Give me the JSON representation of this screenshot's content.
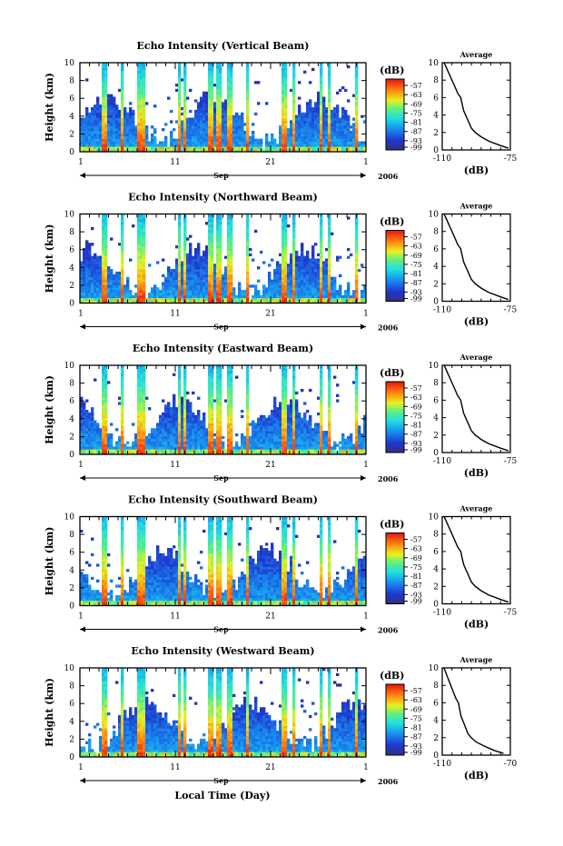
{
  "figure": {
    "xlabel": "Local Time (Day)"
  },
  "chart_data": [
    {
      "type": "heatmap",
      "title": "Echo Intensity (Vertical Beam)",
      "ylabel": "Height (km)",
      "ylim": [
        0,
        10
      ],
      "yticks": [
        "0",
        "2",
        "4",
        "6",
        "8",
        "10"
      ],
      "xticks": [
        "1",
        "11",
        "21",
        "1"
      ],
      "month": "Sep",
      "year": "2006",
      "colorbar": {
        "label": "(dB)",
        "ticks": [
          "-57",
          "-63",
          "-69",
          "-75",
          "-81",
          "-87",
          "-93",
          "-99"
        ]
      },
      "average": {
        "title": "Average",
        "xlabel": "(dB)",
        "xticks": [
          "-110",
          "-75"
        ],
        "xlim": [
          -110,
          -75
        ],
        "yticks": [
          "0",
          "2",
          "4",
          "6",
          "8",
          "10"
        ],
        "height": [
          0.2,
          0.5,
          1,
          1.5,
          2,
          2.5,
          3,
          3.5,
          4,
          4.5,
          5,
          5.5,
          6,
          6.5,
          7,
          7.5,
          8,
          8.5,
          9,
          9.5,
          10
        ],
        "db": [
          -76,
          -80,
          -86,
          -90,
          -93,
          -95,
          -96,
          -97,
          -98,
          -99,
          -99.5,
          -100,
          -100.5,
          -102,
          -103,
          -104,
          -105,
          -106,
          -107,
          -108,
          -109
        ]
      }
    },
    {
      "type": "heatmap",
      "title": "Echo Intensity (Northward Beam)",
      "ylabel": "Height (km)",
      "ylim": [
        0,
        10
      ],
      "yticks": [
        "0",
        "2",
        "4",
        "6",
        "8",
        "10"
      ],
      "xticks": [
        "1",
        "11",
        "21",
        "1"
      ],
      "month": "Sep",
      "year": "2006",
      "colorbar": {
        "label": "(dB)",
        "ticks": [
          "-57",
          "-63",
          "-69",
          "-75",
          "-81",
          "-87",
          "-93",
          "-99"
        ]
      },
      "average": {
        "title": "Average",
        "xlabel": "(dB)",
        "xticks": [
          "-110",
          "-75"
        ],
        "xlim": [
          -110,
          -75
        ],
        "yticks": [
          "0",
          "2",
          "4",
          "6",
          "8",
          "10"
        ],
        "height": [
          0.2,
          0.5,
          1,
          1.5,
          2,
          2.5,
          3,
          3.5,
          4,
          4.5,
          5,
          5.5,
          6,
          6.5,
          7,
          7.5,
          8,
          8.5,
          9,
          9.5,
          10
        ],
        "db": [
          -76,
          -80,
          -86,
          -90,
          -93,
          -95,
          -96,
          -97,
          -98,
          -99,
          -99.5,
          -100,
          -100.5,
          -102,
          -103,
          -104,
          -105,
          -106,
          -107,
          -108,
          -109
        ]
      }
    },
    {
      "type": "heatmap",
      "title": "Echo Intensity (Eastward Beam)",
      "ylabel": "Height (km)",
      "ylim": [
        0,
        10
      ],
      "yticks": [
        "0",
        "2",
        "4",
        "6",
        "8",
        "10"
      ],
      "xticks": [
        "1",
        "11",
        "21",
        "1"
      ],
      "month": "Sep",
      "year": "2006",
      "colorbar": {
        "label": "(dB)",
        "ticks": [
          "-57",
          "-63",
          "-69",
          "-75",
          "-81",
          "-87",
          "-93",
          "-99"
        ]
      },
      "average": {
        "title": "Average",
        "xlabel": "(dB)",
        "xticks": [
          "-110",
          "-75"
        ],
        "xlim": [
          -110,
          -75
        ],
        "yticks": [
          "0",
          "2",
          "4",
          "6",
          "8",
          "10"
        ],
        "height": [
          0.2,
          0.5,
          1,
          1.5,
          2,
          2.5,
          3,
          3.5,
          4,
          4.5,
          5,
          5.5,
          6,
          6.5,
          7,
          7.5,
          8,
          8.5,
          9,
          9.5,
          10
        ],
        "db": [
          -76,
          -80,
          -86,
          -90,
          -93,
          -95,
          -96,
          -97,
          -98,
          -99,
          -99.5,
          -100,
          -100.5,
          -102,
          -103,
          -104,
          -105,
          -106,
          -107,
          -108,
          -109
        ]
      }
    },
    {
      "type": "heatmap",
      "title": "Echo Intensity (Southward Beam)",
      "ylabel": "Height (km)",
      "ylim": [
        0,
        10
      ],
      "yticks": [
        "0",
        "2",
        "4",
        "6",
        "8",
        "10"
      ],
      "xticks": [
        "1",
        "11",
        "21",
        "1"
      ],
      "month": "Sep",
      "year": "2006",
      "colorbar": {
        "label": "(dB)",
        "ticks": [
          "-57",
          "-63",
          "-69",
          "-75",
          "-81",
          "-87",
          "-93",
          "-99"
        ]
      },
      "average": {
        "title": "Average",
        "xlabel": "(dB)",
        "xticks": [
          "-110",
          "-75"
        ],
        "xlim": [
          -110,
          -75
        ],
        "yticks": [
          "0",
          "2",
          "4",
          "6",
          "8",
          "10"
        ],
        "height": [
          0.2,
          0.5,
          1,
          1.5,
          2,
          2.5,
          3,
          3.5,
          4,
          4.5,
          5,
          5.5,
          6,
          6.5,
          7,
          7.5,
          8,
          8.5,
          9,
          9.5,
          10
        ],
        "db": [
          -76,
          -80,
          -86,
          -90,
          -93,
          -95,
          -96,
          -97,
          -98,
          -99,
          -99.5,
          -100,
          -100.5,
          -102,
          -103,
          -104,
          -105,
          -106,
          -107,
          -108,
          -109
        ]
      }
    },
    {
      "type": "heatmap",
      "title": "Echo Intensity (Westward Beam)",
      "ylabel": "Height (km)",
      "ylim": [
        0,
        10
      ],
      "yticks": [
        "0",
        "2",
        "4",
        "6",
        "8",
        "10"
      ],
      "xticks": [
        "1",
        "11",
        "21",
        "1"
      ],
      "month": "Sep",
      "year": "2006",
      "colorbar": {
        "label": "(dB)",
        "ticks": [
          "-57",
          "-63",
          "-69",
          "-75",
          "-81",
          "-87",
          "-93",
          "-99"
        ]
      },
      "average": {
        "title": "Average",
        "xlabel": "(dB)",
        "xticks": [
          "-110",
          "-70"
        ],
        "xlim": [
          -110,
          -70
        ],
        "yticks": [
          "0",
          "2",
          "4",
          "6",
          "8",
          "10"
        ],
        "height": [
          0.2,
          0.5,
          1,
          1.5,
          2,
          2.5,
          3,
          3.5,
          4,
          4.5,
          5,
          5.5,
          6,
          6.5,
          7,
          7.5,
          8,
          8.5,
          9,
          9.5,
          10
        ],
        "db": [
          -74,
          -79,
          -85,
          -90,
          -93,
          -95,
          -96,
          -97,
          -98,
          -99,
          -99.5,
          -100,
          -100.5,
          -102,
          -103,
          -104,
          -105,
          -106,
          -107,
          -108,
          -109
        ]
      }
    }
  ]
}
